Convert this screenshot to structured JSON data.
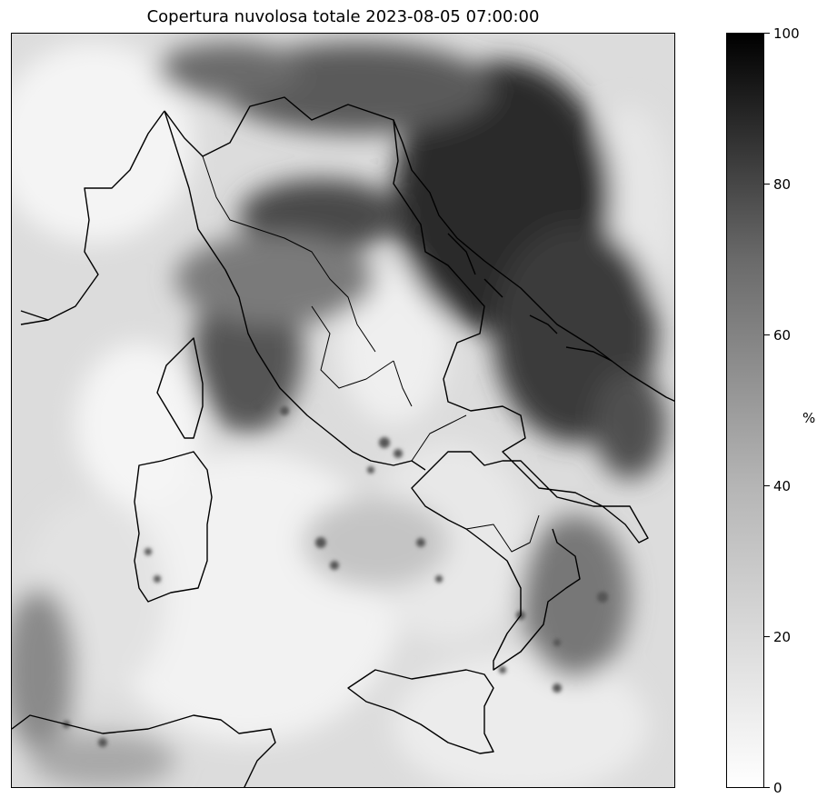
{
  "map": {
    "title": "Copertura nuvolosa totale 2023-08-05 07:00:00",
    "variable": "total cloud cover",
    "colormap": "grayscale, white = 0, black = 100",
    "region": "Italy and surrounding seas",
    "legend_placement": "right"
  },
  "colorbar": {
    "unit": "%",
    "min": 0,
    "max": 100,
    "ticks": [
      "0",
      "20",
      "40",
      "60",
      "80",
      "100"
    ],
    "color_low": "#ffffff",
    "color_high": "#000000"
  }
}
